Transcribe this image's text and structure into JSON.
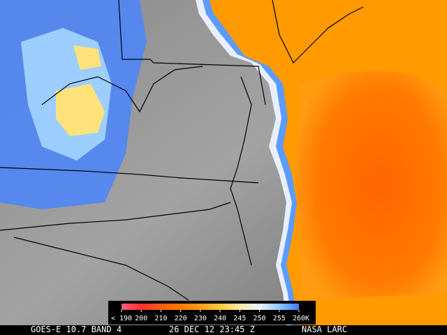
{
  "colorbar": {
    "ticks": [
      {
        "value": 190,
        "label": "< 190"
      },
      200,
      210,
      220,
      230,
      240,
      245,
      250,
      255,
      260
    ],
    "unit": "K",
    "colors": [
      "#ff5a7a",
      "#ff3030",
      "#ff5a10",
      "#ff7a00",
      "#ff9d1a",
      "#ffc840",
      "#ffe9a0",
      "#e8f4ff",
      "#8ec8ff",
      "#3f7cff"
    ]
  },
  "footer": {
    "satellite": "GOES-E 10.7 BAND 4",
    "time": "26 DEC 12 23:45 Z",
    "source": "NASA LARC"
  }
}
